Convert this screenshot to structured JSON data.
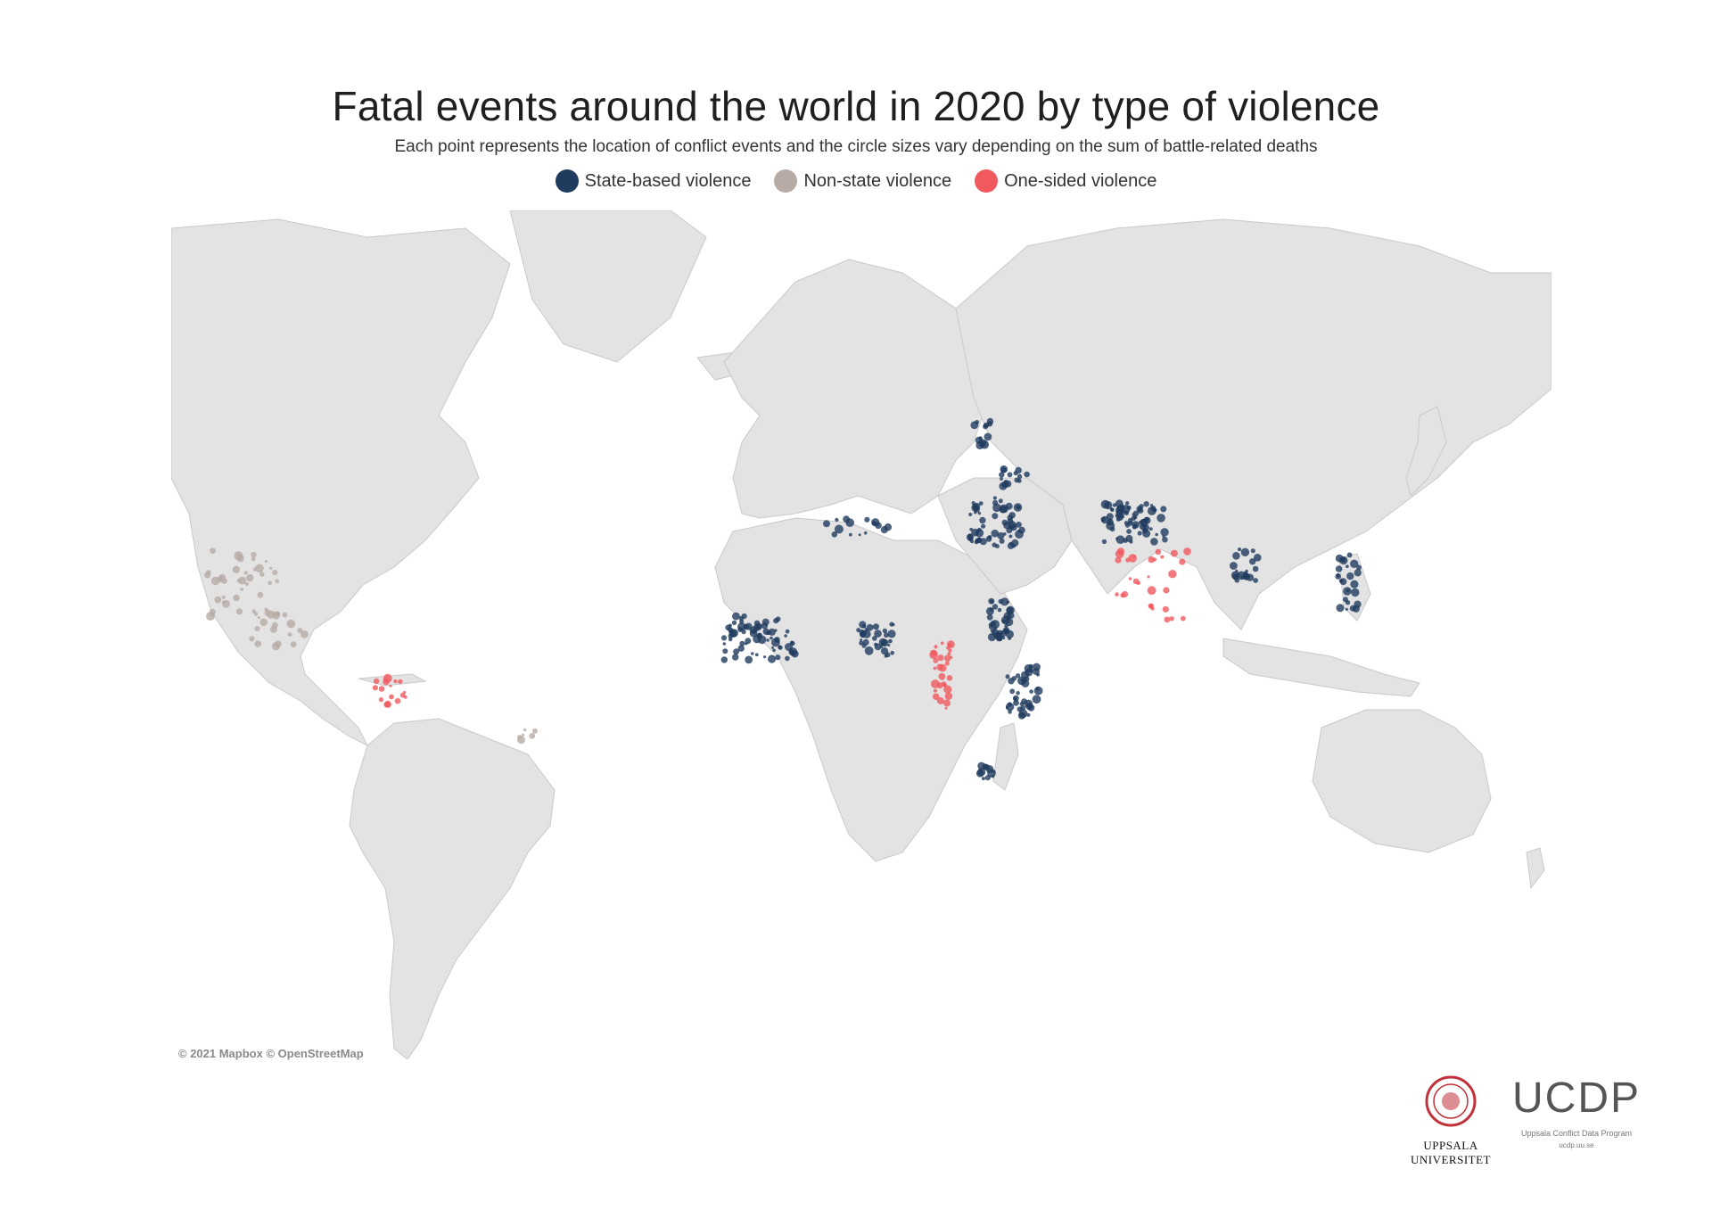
{
  "header": {
    "title": "Fatal events around the world in 2020 by type of violence",
    "subtitle": "Each point represents the location of conflict events and the circle sizes vary depending on the sum of battle-related deaths"
  },
  "legend": [
    {
      "label": "State-based violence",
      "color": "#1f3b5e"
    },
    {
      "label": "Non-state violence",
      "color": "#b8aba5"
    },
    {
      "label": "One-sided violence",
      "color": "#f05a5f"
    }
  ],
  "map": {
    "attribution": "© 2021 Mapbox © OpenStreetMap",
    "land_color": "#e3e3e3",
    "water_color": "#ffffff",
    "regions": [
      {
        "name": "Mexico and Central America",
        "type": "Non-state violence"
      },
      {
        "name": "Colombia",
        "type": "One-sided violence"
      },
      {
        "name": "Brazil",
        "type": "Non-state violence"
      },
      {
        "name": "Sahel",
        "type": "State-based violence"
      },
      {
        "name": "Nigeria",
        "type": "State-based violence"
      },
      {
        "name": "Democratic Republic of the Congo",
        "type": "One-sided violence"
      },
      {
        "name": "Somalia",
        "type": "State-based violence"
      },
      {
        "name": "Ethiopia",
        "type": "State-based violence"
      },
      {
        "name": "Mozambique",
        "type": "State-based violence"
      },
      {
        "name": "Syria and Iraq",
        "type": "State-based violence"
      },
      {
        "name": "Afghanistan",
        "type": "State-based violence"
      },
      {
        "name": "India",
        "type": "One-sided violence"
      },
      {
        "name": "Myanmar",
        "type": "State-based violence"
      },
      {
        "name": "Philippines",
        "type": "State-based violence"
      },
      {
        "name": "Libya",
        "type": "State-based violence"
      },
      {
        "name": "Ukraine",
        "type": "State-based violence"
      },
      {
        "name": "Caucasus",
        "type": "State-based violence"
      }
    ]
  },
  "logos": {
    "university": "UPPSALA\nUNIVERSITET",
    "university_line1": "UPPSALA",
    "university_line2": "UNIVERSITET",
    "ucdp": "UCDP",
    "ucdp_full": "Uppsala Conflict Data Program",
    "ucdp_url": "ucdp.uu.se"
  }
}
